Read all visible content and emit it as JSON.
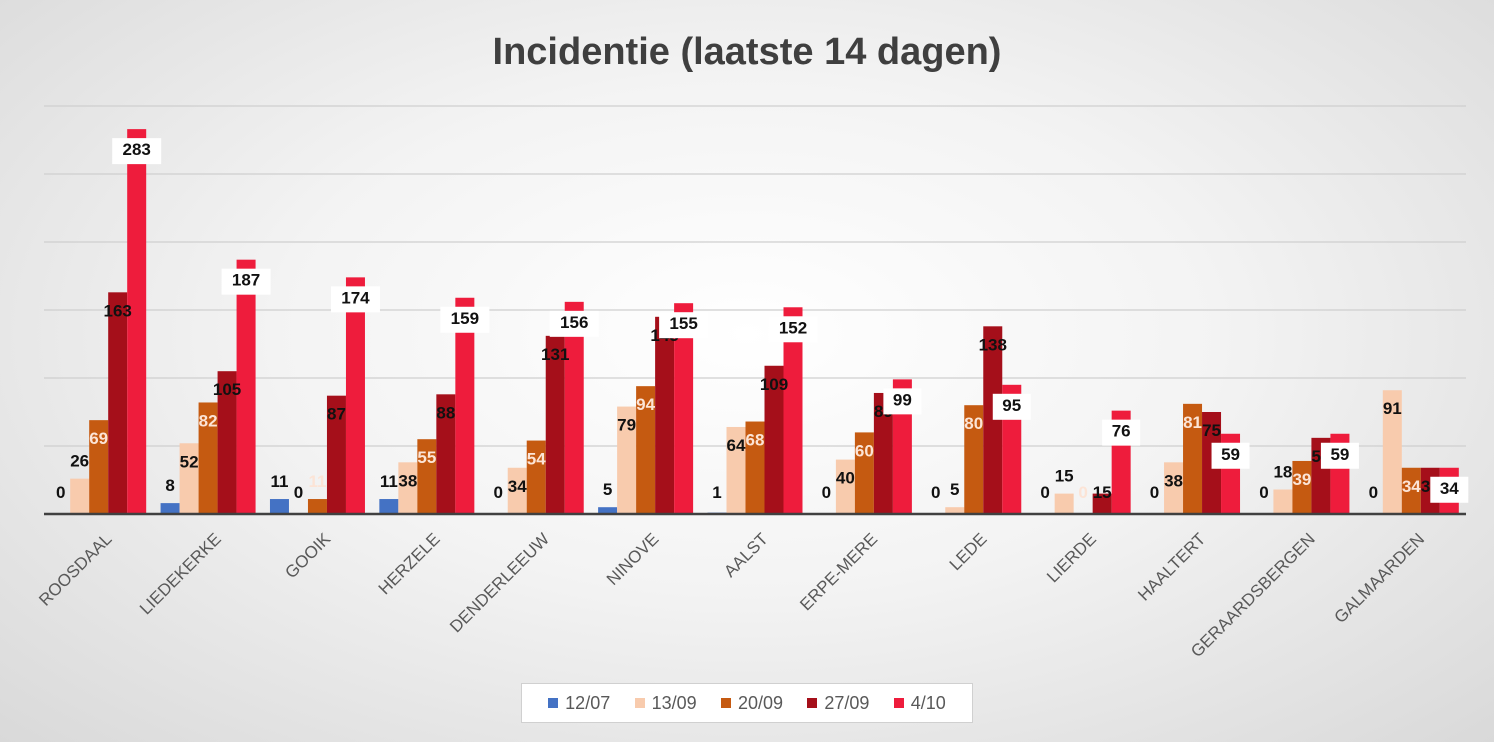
{
  "chart_data": {
    "type": "bar",
    "title": "Incidentie (laatste 14 dagen)",
    "xlabel": "",
    "ylabel": "",
    "ylim": [
      0,
      300
    ],
    "grid": true,
    "legend_position": "bottom",
    "categories": [
      "ROOSDAAL",
      "LIEDEKERKE",
      "GOOIK",
      "HERZELE",
      "DENDERLEEUW",
      "NINOVE",
      "AALST",
      "ERPE-MERE",
      "LEDE",
      "LIERDE",
      "HAALTERT",
      "GERAARDSBERGEN",
      "GALMAARDEN"
    ],
    "series": [
      {
        "name": "12/07",
        "color": "#4472c4",
        "label_color": "#111111",
        "values": [
          0,
          8,
          11,
          11,
          0,
          5,
          1,
          0,
          0,
          0,
          0,
          0,
          0
        ]
      },
      {
        "name": "13/09",
        "color": "#f8cbad",
        "label_color": "#111111",
        "values": [
          26,
          52,
          0,
          38,
          34,
          79,
          64,
          40,
          5,
          15,
          38,
          18,
          91
        ]
      },
      {
        "name": "20/09",
        "color": "#c55a11",
        "label_color": "#fce4d6",
        "values": [
          69,
          82,
          11,
          55,
          54,
          94,
          68,
          60,
          80,
          0,
          81,
          39,
          34
        ]
      },
      {
        "name": "27/09",
        "color": "#a50f1a",
        "label_color": "#111111",
        "values": [
          163,
          105,
          87,
          88,
          131,
          145,
          109,
          89,
          138,
          15,
          75,
          56,
          34
        ]
      },
      {
        "name": "4/10",
        "color": "#ee1c3c",
        "label_color": "#111111",
        "values": [
          283,
          187,
          174,
          159,
          156,
          155,
          152,
          99,
          95,
          76,
          59,
          59,
          34
        ]
      }
    ]
  }
}
